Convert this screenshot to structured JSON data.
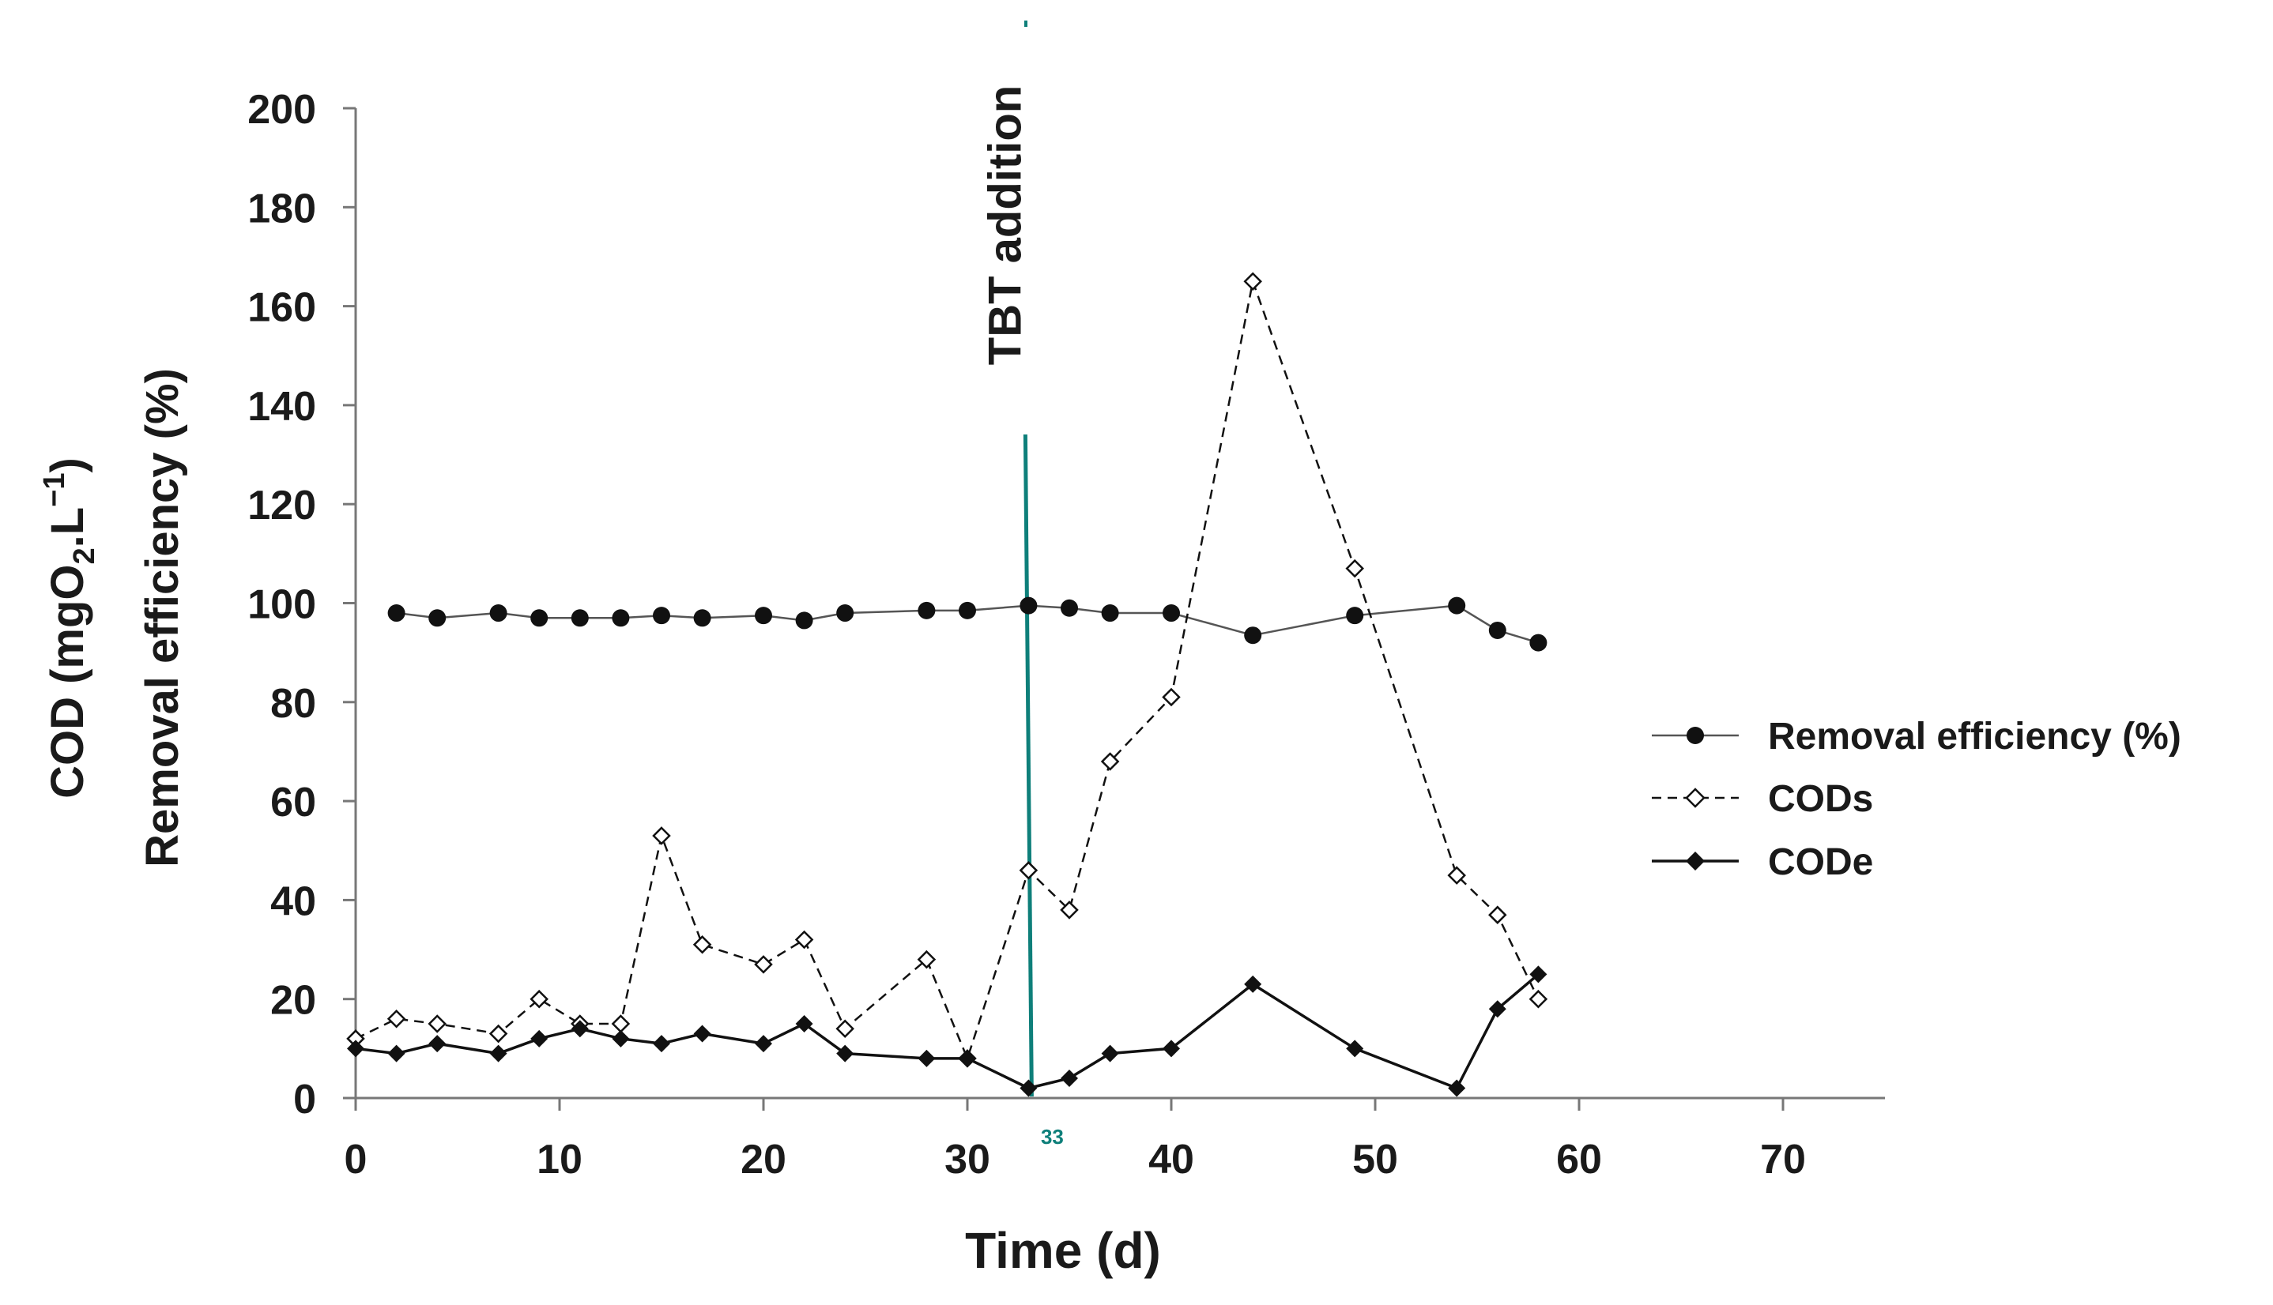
{
  "chart_data": {
    "type": "line",
    "title": "",
    "xlabel": "Time (d)",
    "ylabel_line1": "COD (mgO",
    "ylabel_sub": "2",
    "ylabel_mid": ".L",
    "ylabel_sup": "−1",
    "ylabel_end": ")",
    "ylabel_line2": "Removal efficiency (%)",
    "xlim": [
      0,
      75
    ],
    "ylim": [
      0,
      200
    ],
    "xticks": [
      0,
      10,
      20,
      30,
      40,
      50,
      60,
      70
    ],
    "yticks": [
      0,
      20,
      40,
      60,
      80,
      100,
      120,
      140,
      160,
      180,
      200
    ],
    "annotation": {
      "label": "TBT addition",
      "x": 33,
      "x_label": "33",
      "color": "#0e7f7a"
    },
    "legend_position": "right",
    "series": [
      {
        "name": "Removal efficiency (%)",
        "marker": "circle",
        "line": "solid-thin",
        "x": [
          2,
          4,
          7,
          9,
          11,
          13,
          15,
          17,
          20,
          22,
          24,
          28,
          30,
          33,
          35,
          37,
          40,
          44,
          49,
          54,
          56,
          58
        ],
        "values": [
          98,
          97,
          98,
          97,
          97,
          97,
          97.5,
          97,
          97.5,
          96.5,
          98,
          98.5,
          98.5,
          99.5,
          99,
          98,
          98,
          93.5,
          97.5,
          99.5,
          94.5,
          92
        ]
      },
      {
        "name": "CODs",
        "marker": "diamond-open",
        "line": "dashed",
        "x": [
          0,
          2,
          4,
          7,
          9,
          11,
          13,
          15,
          17,
          20,
          22,
          24,
          28,
          30,
          33,
          35,
          37,
          40,
          44,
          49,
          54,
          56,
          58
        ],
        "values": [
          12,
          16,
          15,
          13,
          20,
          15,
          15,
          53,
          31,
          27,
          32,
          14,
          28,
          8,
          46,
          38,
          68,
          81,
          165,
          107,
          45,
          37,
          20
        ]
      },
      {
        "name": "CODe",
        "marker": "diamond-filled",
        "line": "solid",
        "x": [
          0,
          2,
          4,
          7,
          9,
          11,
          13,
          15,
          17,
          20,
          22,
          24,
          28,
          30,
          33,
          35,
          37,
          40,
          44,
          49,
          54,
          56,
          58
        ],
        "values": [
          10,
          9,
          11,
          9,
          12,
          14,
          12,
          11,
          13,
          11,
          15,
          9,
          8,
          8,
          2,
          4,
          9,
          10,
          23,
          10,
          2,
          18,
          25
        ]
      }
    ]
  }
}
